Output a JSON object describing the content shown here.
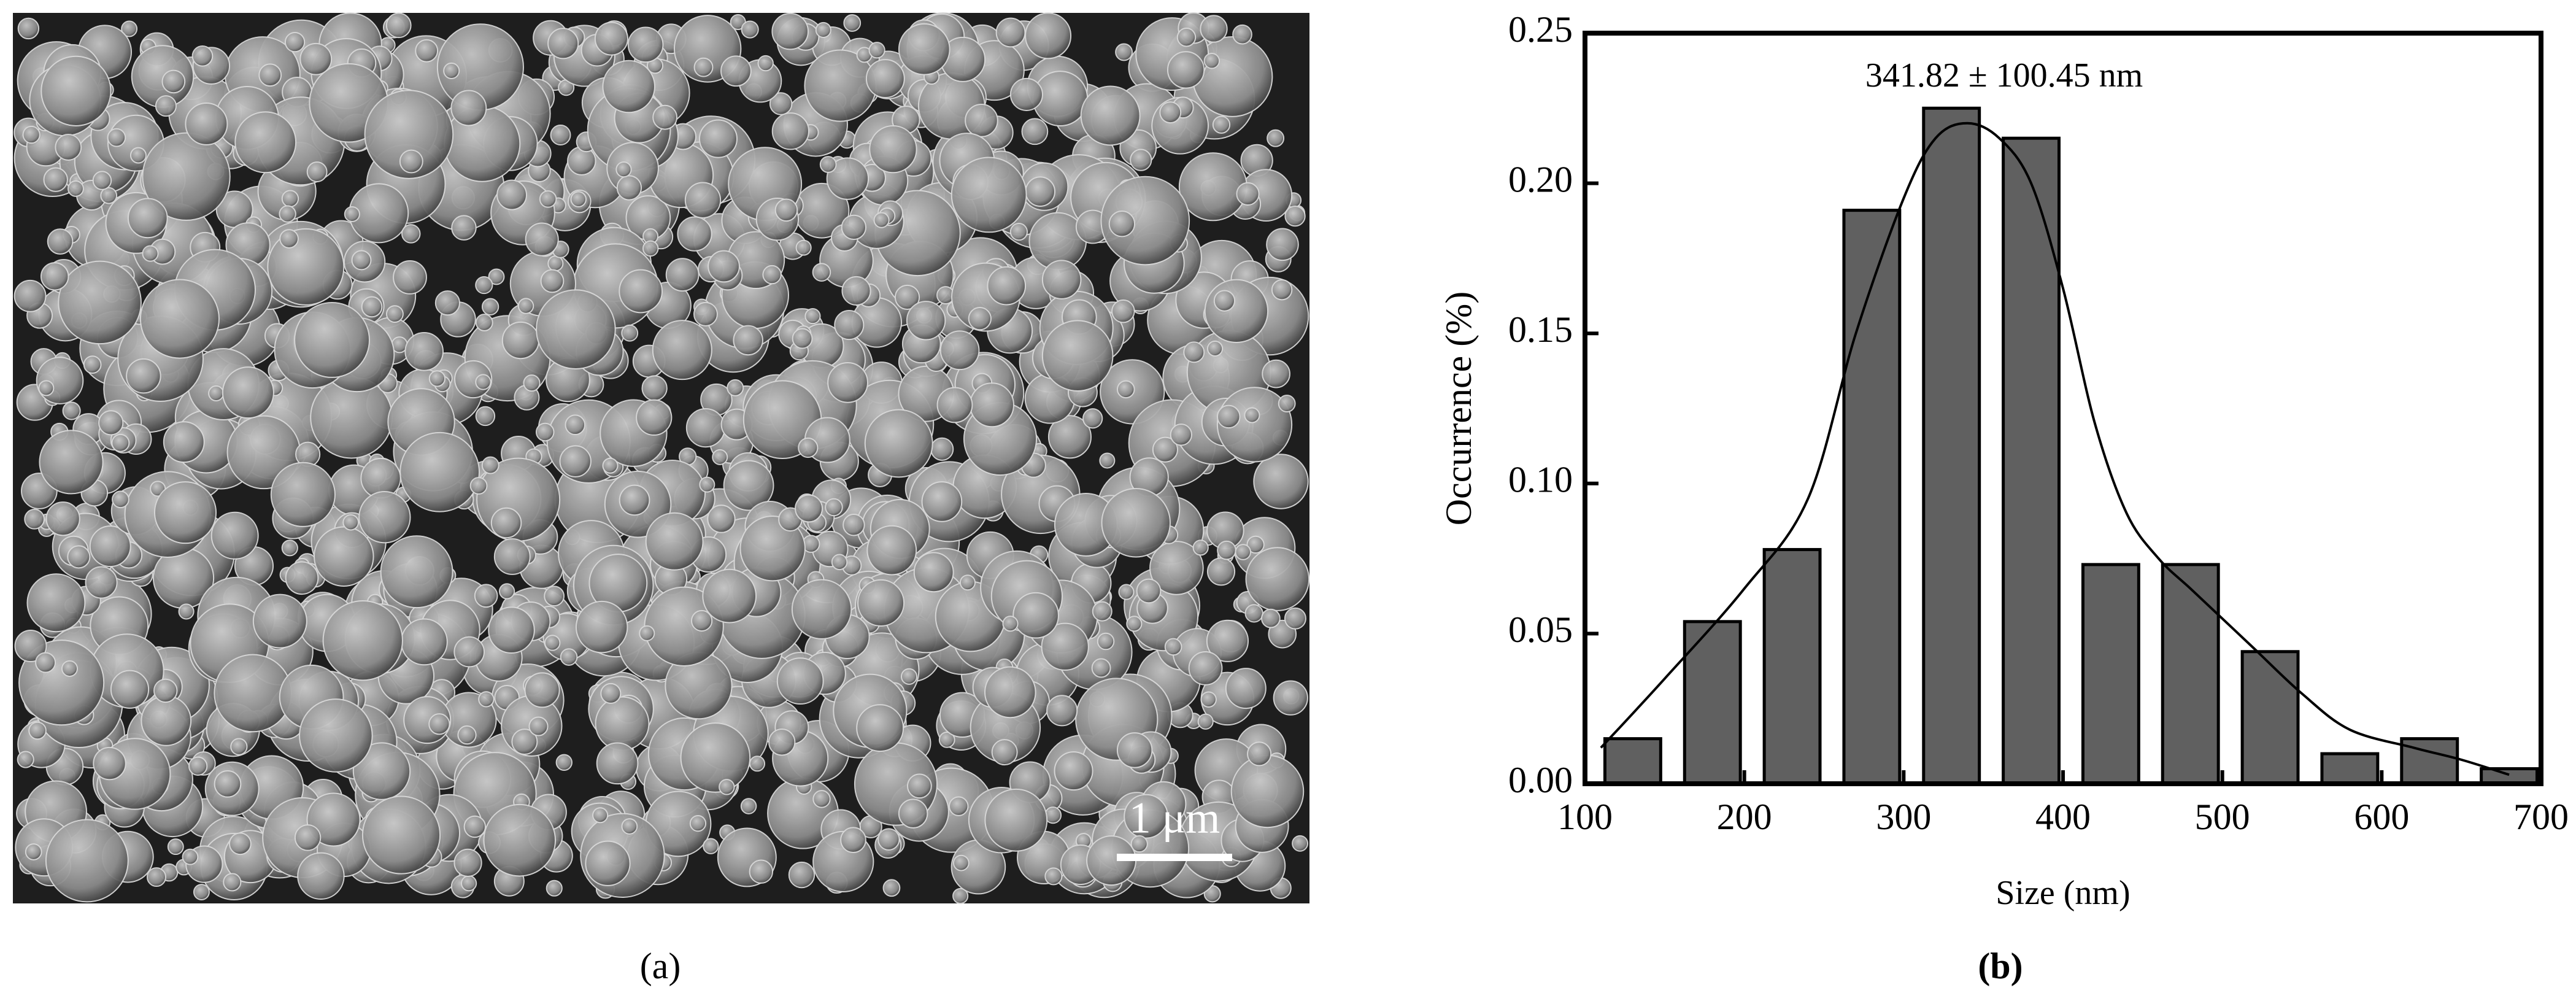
{
  "panel_a": {
    "label": "(a)",
    "scale_bar": "1 μm"
  },
  "chart_data": {
    "type": "histogram",
    "label": "(b)",
    "annotation": "341.82 ± 100.45 nm",
    "xlabel": "Size (nm)",
    "ylabel": "Occurrence (%)",
    "bins": [
      105,
      155,
      205,
      255,
      305,
      355,
      405,
      455,
      505,
      555,
      605,
      655,
      705
    ],
    "values": [
      0.015,
      0.054,
      0.078,
      0.191,
      0.225,
      0.215,
      0.073,
      0.073,
      0.044,
      0.01,
      0.015,
      0.005
    ],
    "color": "#606060",
    "fit": {
      "x": [
        110,
        150,
        200,
        240,
        270,
        300,
        320,
        340,
        360,
        380,
        400,
        420,
        440,
        460,
        480,
        500,
        520,
        550,
        580,
        620,
        650,
        680
      ],
      "y": [
        0.012,
        0.035,
        0.065,
        0.095,
        0.15,
        0.195,
        0.215,
        0.22,
        0.215,
        0.2,
        0.165,
        0.12,
        0.09,
        0.075,
        0.065,
        0.055,
        0.045,
        0.03,
        0.018,
        0.012,
        0.008,
        0.003
      ]
    },
    "xlim": [
      100,
      700
    ],
    "ylim": [
      0,
      0.25
    ],
    "xticks": [
      100,
      200,
      300,
      400,
      500,
      600,
      700
    ],
    "yticks": [
      {
        "value": 0,
        "label": "0.00"
      },
      {
        "value": 0.05,
        "label": "0.05"
      },
      {
        "value": 0.1,
        "label": "0.10"
      },
      {
        "value": 0.15,
        "label": "0.15"
      },
      {
        "value": 0.2,
        "label": "0.20"
      },
      {
        "value": 0.25,
        "label": "0.25"
      }
    ]
  }
}
